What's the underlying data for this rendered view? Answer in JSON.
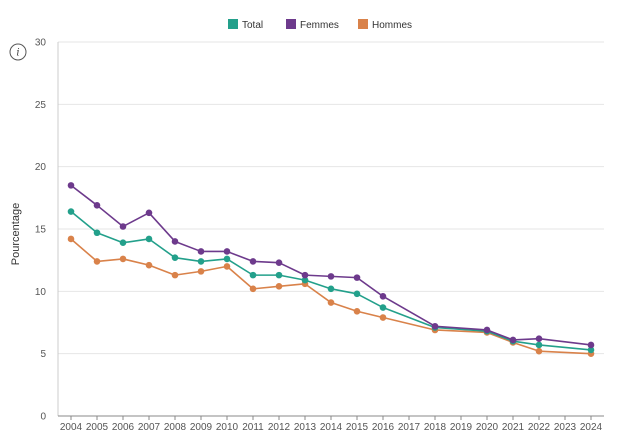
{
  "chart_data": {
    "type": "line",
    "title": "",
    "xlabel": "",
    "ylabel": "Pourcentage",
    "ylim": [
      0,
      30
    ],
    "yticks": [
      0,
      5,
      10,
      15,
      20,
      25,
      30
    ],
    "grid": true,
    "legend_position": "top-center",
    "x": [
      "2004",
      "2005",
      "2006",
      "2007",
      "2008",
      "2009",
      "2010",
      "2011",
      "2012",
      "2013",
      "2014",
      "2015",
      "2016",
      "2017",
      "2018",
      "2019",
      "2020",
      "2021",
      "2022",
      "2023",
      "2024"
    ],
    "series": [
      {
        "name": "Total",
        "color": "#23a08b",
        "points": [
          {
            "x": "2004",
            "y": 16.4
          },
          {
            "x": "2005",
            "y": 14.7
          },
          {
            "x": "2006",
            "y": 13.9
          },
          {
            "x": "2007",
            "y": 14.2
          },
          {
            "x": "2008",
            "y": 12.7
          },
          {
            "x": "2009",
            "y": 12.4
          },
          {
            "x": "2010",
            "y": 12.6
          },
          {
            "x": "2011",
            "y": 11.3
          },
          {
            "x": "2012",
            "y": 11.3
          },
          {
            "x": "2013",
            "y": 10.9
          },
          {
            "x": "2014",
            "y": 10.2
          },
          {
            "x": "2015",
            "y": 9.8
          },
          {
            "x": "2016",
            "y": 8.7
          },
          {
            "x": "2018",
            "y": 7.1
          },
          {
            "x": "2020",
            "y": 6.8
          },
          {
            "x": "2021",
            "y": 6.0
          },
          {
            "x": "2022",
            "y": 5.7
          },
          {
            "x": "2024",
            "y": 5.3
          }
        ]
      },
      {
        "name": "Femmes",
        "color": "#6d3a8c",
        "points": [
          {
            "x": "2004",
            "y": 18.5
          },
          {
            "x": "2005",
            "y": 16.9
          },
          {
            "x": "2006",
            "y": 15.2
          },
          {
            "x": "2007",
            "y": 16.3
          },
          {
            "x": "2008",
            "y": 14.0
          },
          {
            "x": "2009",
            "y": 13.2
          },
          {
            "x": "2010",
            "y": 13.2
          },
          {
            "x": "2011",
            "y": 12.4
          },
          {
            "x": "2012",
            "y": 12.3
          },
          {
            "x": "2013",
            "y": 11.3
          },
          {
            "x": "2014",
            "y": 11.2
          },
          {
            "x": "2015",
            "y": 11.1
          },
          {
            "x": "2016",
            "y": 9.6
          },
          {
            "x": "2018",
            "y": 7.2
          },
          {
            "x": "2020",
            "y": 6.9
          },
          {
            "x": "2021",
            "y": 6.1
          },
          {
            "x": "2022",
            "y": 6.2
          },
          {
            "x": "2024",
            "y": 5.7
          }
        ]
      },
      {
        "name": "Hommes",
        "color": "#d9824a",
        "points": [
          {
            "x": "2004",
            "y": 14.2
          },
          {
            "x": "2005",
            "y": 12.4
          },
          {
            "x": "2006",
            "y": 12.6
          },
          {
            "x": "2007",
            "y": 12.1
          },
          {
            "x": "2008",
            "y": 11.3
          },
          {
            "x": "2009",
            "y": 11.6
          },
          {
            "x": "2010",
            "y": 12.0
          },
          {
            "x": "2011",
            "y": 10.2
          },
          {
            "x": "2012",
            "y": 10.4
          },
          {
            "x": "2013",
            "y": 10.6
          },
          {
            "x": "2014",
            "y": 9.1
          },
          {
            "x": "2015",
            "y": 8.4
          },
          {
            "x": "2016",
            "y": 7.9
          },
          {
            "x": "2018",
            "y": 6.9
          },
          {
            "x": "2020",
            "y": 6.7
          },
          {
            "x": "2021",
            "y": 5.9
          },
          {
            "x": "2022",
            "y": 5.2
          },
          {
            "x": "2024",
            "y": 5.0
          }
        ]
      }
    ]
  },
  "info_button": {
    "icon": "info-icon",
    "glyph": "i"
  }
}
